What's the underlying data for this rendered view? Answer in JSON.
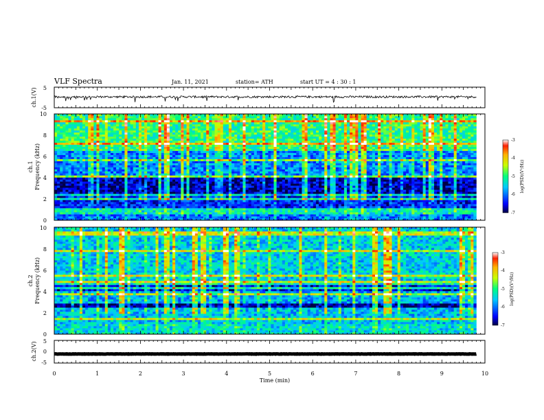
{
  "header": {
    "title": "VLF Spectra",
    "date": "Jan. 11, 2021",
    "station": "station= ATH",
    "start": "start  UT =  4 : 30 : 1"
  },
  "chart_data": [
    {
      "type": "line",
      "name": "ch1-waveform-panel",
      "ylabel": "ch.1(V)",
      "ylim": [
        -5,
        5
      ],
      "yticks": [
        "5",
        "-5"
      ],
      "baseline": 0.3
    },
    {
      "type": "heatmap",
      "name": "ch1-spectrogram",
      "ylabel_line1": "ch.1",
      "ylabel_line2": "Frequency  (kHz)",
      "ylim": [
        0,
        10
      ],
      "yticks": [
        "0",
        "2",
        "4",
        "6",
        "8",
        "10"
      ],
      "colorbar": {
        "label": "log(PSD)(V²/Hz)",
        "ticks": [
          "-3",
          "-4",
          "-5",
          "-6",
          "-7"
        ],
        "range": [
          -7,
          -3
        ]
      },
      "bands": [
        {
          "f": [
            0,
            0.6
          ],
          "level": -6.0
        },
        {
          "f": [
            0.6,
            1.2
          ],
          "level": -5.3
        },
        {
          "f": [
            1.2,
            2.4
          ],
          "level": -6.4
        },
        {
          "f": [
            2.4,
            4.0
          ],
          "level": -6.7
        },
        {
          "f": [
            4.0,
            6.6
          ],
          "level": -5.9
        },
        {
          "f": [
            6.6,
            10
          ],
          "level": -5.0
        }
      ]
    },
    {
      "type": "heatmap",
      "name": "ch2-spectrogram",
      "ylabel_line1": "ch.2",
      "ylabel_line2": "Frequency  (kHz)",
      "ylim": [
        0,
        10
      ],
      "yticks": [
        "0",
        "2",
        "4",
        "6",
        "8",
        "10"
      ],
      "colorbar": {
        "label": "log(PSD)(V²/Hz)",
        "ticks": [
          "-3",
          "-4",
          "-5",
          "-6",
          "-7"
        ],
        "range": [
          -7,
          -3
        ]
      },
      "bands": [
        {
          "f": [
            0,
            1.0
          ],
          "level": -5.4
        },
        {
          "f": [
            1.0,
            2.2
          ],
          "level": -5.6
        },
        {
          "f": [
            2.2,
            2.8
          ],
          "level": -6.8
        },
        {
          "f": [
            2.8,
            4.0
          ],
          "level": -5.7
        },
        {
          "f": [
            4.0,
            4.8
          ],
          "level": -6.5
        },
        {
          "f": [
            4.8,
            10
          ],
          "level": -5.5
        }
      ]
    },
    {
      "type": "line",
      "name": "ch2-waveform-panel",
      "ylabel": "ch.2(V)",
      "ylim": [
        -5,
        5
      ],
      "yticks": [
        "5",
        "0",
        "-5"
      ],
      "baseline": -1.0
    }
  ],
  "xaxis": {
    "label": "Time  (min)",
    "range": [
      0,
      10
    ],
    "ticks": [
      "0",
      "1",
      "2",
      "3",
      "4",
      "5",
      "6",
      "7",
      "8",
      "9",
      "10"
    ],
    "data_end": 9.8
  }
}
